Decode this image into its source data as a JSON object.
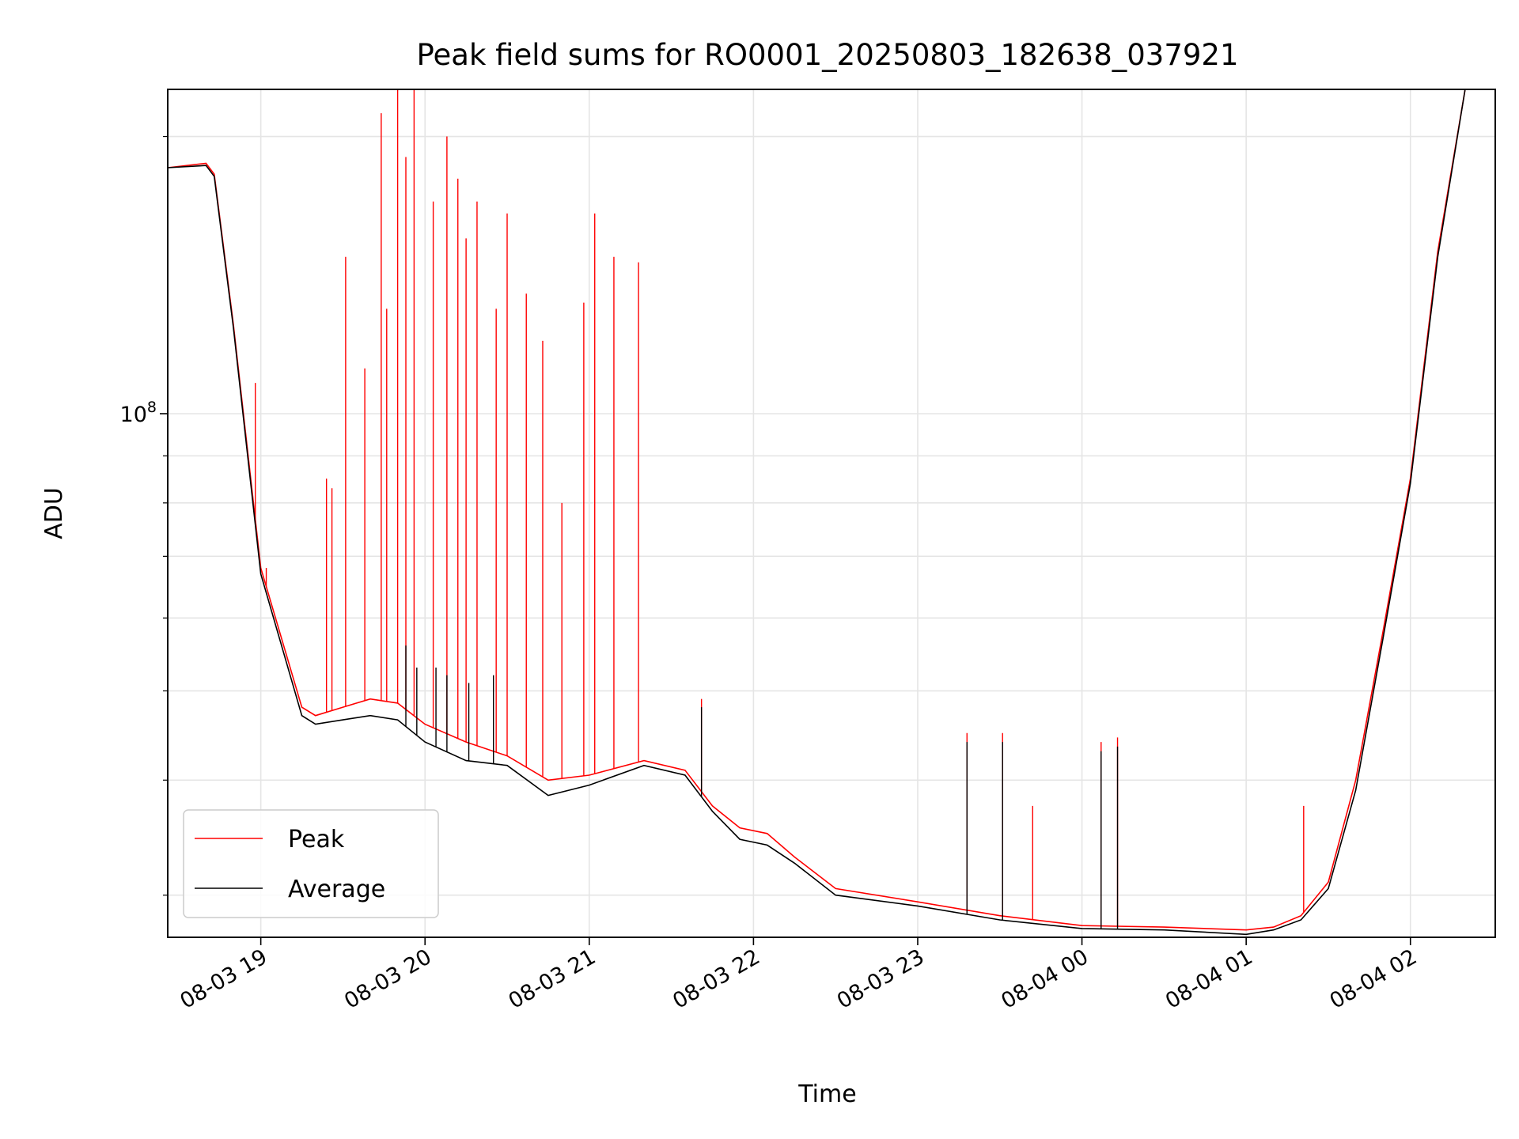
{
  "chart_data": {
    "type": "line",
    "title": "Peak field sums for RO0001_20250803_182638_037921",
    "xlabel": "Time",
    "ylabel": "ADU",
    "y_scale": "log",
    "ylim": [
      27000000,
      225000000
    ],
    "xlim": [
      "2025-08-03 18:26",
      "2025-08-04 02:31"
    ],
    "grid": true,
    "legend_position": "lower-left",
    "x_ticks": [
      {
        "value": "2025-08-03 19:00",
        "label": "08-03 19"
      },
      {
        "value": "2025-08-03 20:00",
        "label": "08-03 20"
      },
      {
        "value": "2025-08-03 21:00",
        "label": "08-03 21"
      },
      {
        "value": "2025-08-03 22:00",
        "label": "08-03 22"
      },
      {
        "value": "2025-08-03 23:00",
        "label": "08-03 23"
      },
      {
        "value": "2025-08-04 00:00",
        "label": "08-04 00"
      },
      {
        "value": "2025-08-04 01:00",
        "label": "08-04 01"
      },
      {
        "value": "2025-08-04 02:00",
        "label": "08-04 02"
      }
    ],
    "y_major_tick": {
      "value": 100000000,
      "label_base": "10",
      "label_exp": "8"
    },
    "series": [
      {
        "name": "Peak",
        "color": "#ff0000",
        "baseline": [
          [
            "2025-08-03 18:26",
            185000000
          ],
          [
            "2025-08-03 18:40",
            187000000
          ],
          [
            "2025-08-03 18:43",
            182000000
          ],
          [
            "2025-08-03 18:50",
            125000000
          ],
          [
            "2025-08-03 19:00",
            68000000
          ],
          [
            "2025-08-03 19:15",
            48000000
          ],
          [
            "2025-08-03 19:20",
            47000000
          ],
          [
            "2025-08-03 19:30",
            48000000
          ],
          [
            "2025-08-03 19:40",
            49000000
          ],
          [
            "2025-08-03 19:50",
            48500000
          ],
          [
            "2025-08-03 20:00",
            46000000
          ],
          [
            "2025-08-03 20:15",
            44000000
          ],
          [
            "2025-08-03 20:30",
            42500000
          ],
          [
            "2025-08-03 20:45",
            40000000
          ],
          [
            "2025-08-03 21:00",
            40500000
          ],
          [
            "2025-08-03 21:20",
            42000000
          ],
          [
            "2025-08-03 21:35",
            41000000
          ],
          [
            "2025-08-03 21:45",
            37500000
          ],
          [
            "2025-08-03 21:55",
            35500000
          ],
          [
            "2025-08-03 22:05",
            35000000
          ],
          [
            "2025-08-03 22:15",
            33000000
          ],
          [
            "2025-08-03 22:30",
            30500000
          ],
          [
            "2025-08-03 23:00",
            29500000
          ],
          [
            "2025-08-03 23:30",
            28500000
          ],
          [
            "2025-08-04 00:00",
            27800000
          ],
          [
            "2025-08-04 00:30",
            27700000
          ],
          [
            "2025-08-04 01:00",
            27500000
          ],
          [
            "2025-08-04 01:10",
            27700000
          ],
          [
            "2025-08-04 01:20",
            28500000
          ],
          [
            "2025-08-04 01:30",
            31000000
          ],
          [
            "2025-08-04 01:40",
            40000000
          ],
          [
            "2025-08-04 01:50",
            58000000
          ],
          [
            "2025-08-04 02:00",
            85000000
          ],
          [
            "2025-08-04 02:10",
            150000000
          ],
          [
            "2025-08-04 02:20",
            225000000
          ],
          [
            "2025-08-04 02:31",
            225000000
          ]
        ],
        "spikes": [
          [
            "2025-08-03 18:47",
            145000000
          ],
          [
            "2025-08-03 18:58",
            108000000
          ],
          [
            "2025-08-03 19:02",
            68000000
          ],
          [
            "2025-08-03 19:24",
            85000000
          ],
          [
            "2025-08-03 19:26",
            83000000
          ],
          [
            "2025-08-03 19:31",
            148000000
          ],
          [
            "2025-08-03 19:38",
            112000000
          ],
          [
            "2025-08-03 19:44",
            212000000
          ],
          [
            "2025-08-03 19:46",
            130000000
          ],
          [
            "2025-08-03 19:50",
            225000000
          ],
          [
            "2025-08-03 19:53",
            190000000
          ],
          [
            "2025-08-03 19:56",
            225000000
          ],
          [
            "2025-08-03 20:03",
            170000000
          ],
          [
            "2025-08-03 20:08",
            200000000
          ],
          [
            "2025-08-03 20:12",
            180000000
          ],
          [
            "2025-08-03 20:15",
            155000000
          ],
          [
            "2025-08-03 20:19",
            170000000
          ],
          [
            "2025-08-03 20:26",
            130000000
          ],
          [
            "2025-08-03 20:30",
            165000000
          ],
          [
            "2025-08-03 20:37",
            135000000
          ],
          [
            "2025-08-03 20:43",
            120000000
          ],
          [
            "2025-08-03 20:50",
            80000000
          ],
          [
            "2025-08-03 20:58",
            132000000
          ],
          [
            "2025-08-03 21:02",
            165000000
          ],
          [
            "2025-08-03 21:09",
            148000000
          ],
          [
            "2025-08-03 21:18",
            146000000
          ],
          [
            "2025-08-03 21:41",
            49000000
          ],
          [
            "2025-08-03 23:18",
            45000000
          ],
          [
            "2025-08-03 23:31",
            45000000
          ],
          [
            "2025-08-03 23:42",
            37500000
          ],
          [
            "2025-08-04 00:07",
            44000000
          ],
          [
            "2025-08-04 00:13",
            44500000
          ],
          [
            "2025-08-04 01:21",
            37500000
          ]
        ]
      },
      {
        "name": "Average",
        "color": "#000000",
        "baseline": [
          [
            "2025-08-03 18:26",
            185000000
          ],
          [
            "2025-08-03 18:40",
            186000000
          ],
          [
            "2025-08-03 18:43",
            181000000
          ],
          [
            "2025-08-03 18:50",
            124000000
          ],
          [
            "2025-08-03 19:00",
            67000000
          ],
          [
            "2025-08-03 19:15",
            47000000
          ],
          [
            "2025-08-03 19:20",
            46000000
          ],
          [
            "2025-08-03 19:30",
            46500000
          ],
          [
            "2025-08-03 19:40",
            47000000
          ],
          [
            "2025-08-03 19:50",
            46500000
          ],
          [
            "2025-08-03 20:00",
            44000000
          ],
          [
            "2025-08-03 20:15",
            42000000
          ],
          [
            "2025-08-03 20:30",
            41500000
          ],
          [
            "2025-08-03 20:45",
            38500000
          ],
          [
            "2025-08-03 21:00",
            39500000
          ],
          [
            "2025-08-03 21:20",
            41500000
          ],
          [
            "2025-08-03 21:35",
            40500000
          ],
          [
            "2025-08-03 21:45",
            37000000
          ],
          [
            "2025-08-03 21:55",
            34500000
          ],
          [
            "2025-08-03 22:05",
            34000000
          ],
          [
            "2025-08-03 22:15",
            32500000
          ],
          [
            "2025-08-03 22:30",
            30000000
          ],
          [
            "2025-08-03 23:00",
            29200000
          ],
          [
            "2025-08-03 23:30",
            28200000
          ],
          [
            "2025-08-04 00:00",
            27600000
          ],
          [
            "2025-08-04 00:30",
            27500000
          ],
          [
            "2025-08-04 01:00",
            27200000
          ],
          [
            "2025-08-04 01:10",
            27500000
          ],
          [
            "2025-08-04 01:20",
            28200000
          ],
          [
            "2025-08-04 01:30",
            30500000
          ],
          [
            "2025-08-04 01:40",
            39000000
          ],
          [
            "2025-08-04 01:50",
            57000000
          ],
          [
            "2025-08-04 02:00",
            84000000
          ],
          [
            "2025-08-04 02:10",
            148000000
          ],
          [
            "2025-08-04 02:20",
            225000000
          ],
          [
            "2025-08-04 02:31",
            225000000
          ]
        ],
        "spikes": [
          [
            "2025-08-03 19:53",
            56000000
          ],
          [
            "2025-08-03 19:57",
            53000000
          ],
          [
            "2025-08-03 20:04",
            53000000
          ],
          [
            "2025-08-03 20:08",
            52000000
          ],
          [
            "2025-08-03 20:16",
            51000000
          ],
          [
            "2025-08-03 20:25",
            52000000
          ],
          [
            "2025-08-03 21:41",
            48000000
          ],
          [
            "2025-08-03 23:18",
            44000000
          ],
          [
            "2025-08-03 23:31",
            44000000
          ],
          [
            "2025-08-04 00:07",
            43000000
          ],
          [
            "2025-08-04 00:13",
            43500000
          ]
        ]
      }
    ]
  }
}
